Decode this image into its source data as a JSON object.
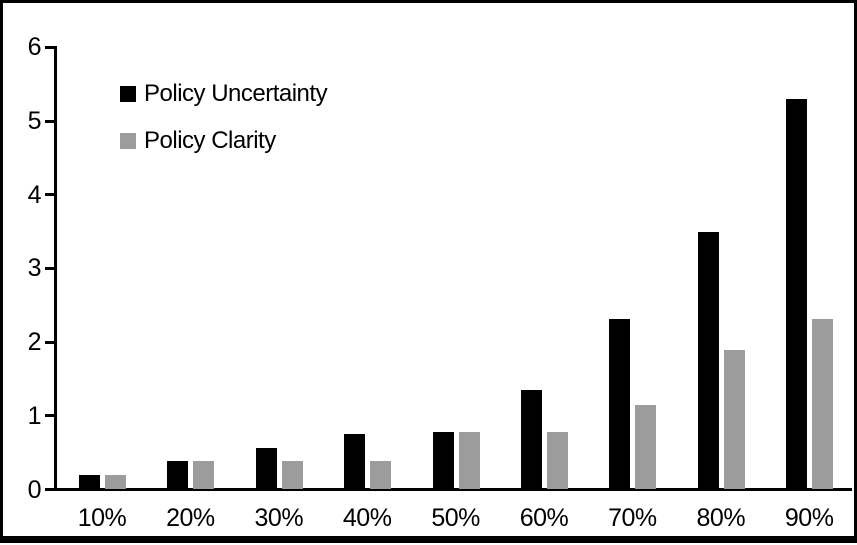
{
  "chart_data": {
    "type": "bar",
    "title": "",
    "xlabel": "",
    "ylabel": "",
    "categories": [
      "10%",
      "20%",
      "30%",
      "40%",
      "50%",
      "60%",
      "70%",
      "80%",
      "90%"
    ],
    "series": [
      {
        "name": "Policy Uncertainty",
        "color": "#000000",
        "values": [
          0.2,
          0.39,
          0.57,
          0.76,
          0.78,
          1.35,
          2.31,
          3.5,
          5.3
        ]
      },
      {
        "name": "Policy Clarity",
        "color": "#9C9C9C",
        "values": [
          0.2,
          0.39,
          0.39,
          0.39,
          0.78,
          0.78,
          1.15,
          1.9,
          2.31
        ]
      }
    ],
    "ylim": [
      0,
      6
    ],
    "yticks": [
      0,
      1,
      2,
      3,
      4,
      5,
      6
    ],
    "grid": false,
    "legend_position": "top-left-inside",
    "axis_color": "#000000",
    "frame_color": "#000000",
    "background": "#ffffff"
  }
}
